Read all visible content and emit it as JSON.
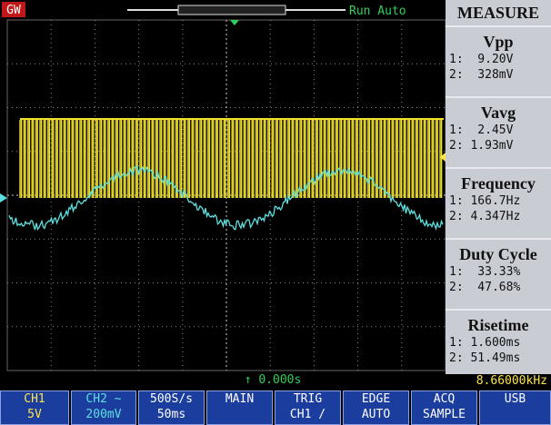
{
  "top_bar": {
    "logo": "GW",
    "status": "Run Auto"
  },
  "measure": {
    "title": "MEASURE",
    "items": [
      {
        "name": "Vpp",
        "ch1": "1:  9.20V",
        "ch2": "2:  328mV"
      },
      {
        "name": "Vavg",
        "ch1": "1:  2.45V",
        "ch2": "2: 1.93mV"
      },
      {
        "name": "Frequency",
        "ch1": "1: 166.7Hz",
        "ch2": "2: 4.347Hz"
      },
      {
        "name": "Duty Cycle",
        "ch1": "1:  33.33%",
        "ch2": "2:  47.68%"
      },
      {
        "name": "Risetime",
        "ch1": "1: 1.600ms",
        "ch2": "2: 51.49ms"
      }
    ]
  },
  "status": {
    "time": "↑ 0.000s",
    "frequency": "8.66000kHz"
  },
  "menu": [
    {
      "line1": "CH1",
      "line2": "5V"
    },
    {
      "line1": "CH2 ~",
      "line2": "200mV"
    },
    {
      "line1": "500S/s",
      "line2": "50ms"
    },
    {
      "line1": "MAIN",
      "line2": ""
    },
    {
      "line1": "TRIG",
      "line2": "CH1 /"
    },
    {
      "line1": "EDGE",
      "line2": "AUTO"
    },
    {
      "line1": "ACQ",
      "line2": "SAMPLE"
    },
    {
      "line1": "USB",
      "line2": ""
    }
  ]
}
